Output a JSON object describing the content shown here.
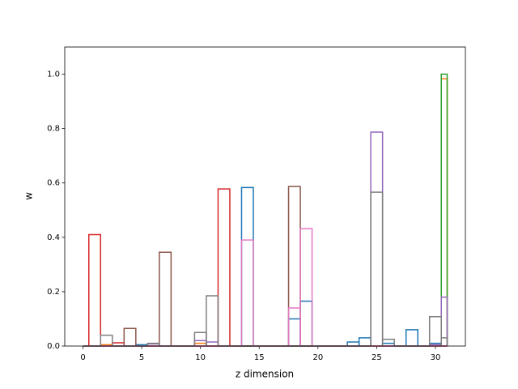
{
  "chart_data": {
    "type": "histogram",
    "x_label": "z dimension",
    "y_label": "w",
    "xlim": [
      -1.55,
      32.55
    ],
    "ylim": [
      0,
      1.1
    ],
    "xticks": [
      0,
      5,
      10,
      15,
      20,
      25,
      30
    ],
    "yticks": [
      {
        "value": 0,
        "label": "0.0"
      },
      {
        "value": 0.2,
        "label": "0.2"
      },
      {
        "value": 0.4,
        "label": "0.4"
      },
      {
        "value": 0.6,
        "label": "0.6"
      },
      {
        "value": 0.8,
        "label": "0.8"
      },
      {
        "value": 1.0,
        "label": "1.0"
      }
    ],
    "bins": [
      0,
      0.5,
      1.5,
      2.5,
      3.5,
      4.5,
      5.5,
      6.5,
      7.5,
      8.5,
      9.5,
      10.5,
      11.5,
      12.5,
      13.5,
      14.5,
      15.5,
      16.5,
      17.5,
      18.5,
      19.5,
      20.5,
      21.5,
      22.5,
      23.5,
      24.5,
      25.5,
      26.5,
      27.5,
      28.5,
      29.5,
      30.5,
      31
    ],
    "series": [
      {
        "color": "#1f77b4",
        "values": [
          0,
          0,
          0,
          0,
          0,
          0.005,
          0,
          0,
          0,
          0,
          0,
          0,
          0,
          0,
          0.583,
          0,
          0,
          0,
          0.1,
          0.165,
          0,
          0,
          0,
          0.015,
          0.03,
          0,
          0.01,
          0,
          0.06,
          0,
          0.01,
          0
        ]
      },
      {
        "color": "#ff7f0e",
        "values": [
          0,
          0,
          0.005,
          0,
          0,
          0,
          0,
          0,
          0,
          0,
          0.01,
          0,
          0,
          0,
          0,
          0,
          0,
          0,
          0,
          0,
          0,
          0,
          0,
          0,
          0,
          0,
          0,
          0,
          0,
          0,
          0,
          0.983
        ]
      },
      {
        "color": "#2ca02c",
        "values": [
          0,
          0,
          0,
          0,
          0,
          0,
          0,
          0,
          0,
          0,
          0,
          0,
          0,
          0,
          0,
          0,
          0,
          0,
          0,
          0,
          0,
          0,
          0,
          0,
          0,
          0,
          0,
          0,
          0,
          0,
          0,
          1.0
        ]
      },
      {
        "color": "#d62728",
        "values": [
          0,
          0.41,
          0,
          0.012,
          0,
          0,
          0,
          0,
          0,
          0,
          0,
          0,
          0.578,
          0,
          0,
          0,
          0,
          0,
          0,
          0,
          0,
          0,
          0,
          0,
          0,
          0,
          0,
          0,
          0,
          0,
          0,
          0
        ]
      },
      {
        "color": "#9467bd",
        "values": [
          0,
          0,
          0,
          0,
          0,
          0,
          0.008,
          0,
          0,
          0,
          0.02,
          0.015,
          0,
          0,
          0,
          0,
          0,
          0,
          0,
          0,
          0,
          0,
          0,
          0,
          0,
          0.787,
          0,
          0,
          0,
          0,
          0.005,
          0.18
        ]
      },
      {
        "color": "#8c564b",
        "values": [
          0,
          0,
          0,
          0,
          0.065,
          0,
          0,
          0.345,
          0,
          0,
          0,
          0,
          0,
          0,
          0,
          0,
          0,
          0,
          0.587,
          0,
          0,
          0,
          0,
          0,
          0,
          0,
          0,
          0,
          0,
          0,
          0,
          0
        ]
      },
      {
        "color": "#e377c2",
        "values": [
          0,
          0,
          0,
          0,
          0,
          0,
          0,
          0,
          0,
          0,
          0,
          0,
          0,
          0,
          0.39,
          0,
          0,
          0,
          0.14,
          0.432,
          0,
          0,
          0,
          0,
          0,
          0,
          0,
          0,
          0,
          0,
          0,
          0
        ]
      },
      {
        "color": "#7f7f7f",
        "values": [
          0,
          0,
          0.04,
          0,
          0,
          0,
          0.01,
          0,
          0,
          0,
          0.05,
          0.185,
          0,
          0,
          0,
          0,
          0,
          0,
          0,
          0,
          0,
          0,
          0,
          0,
          0,
          0.566,
          0.025,
          0,
          0,
          0,
          0.108,
          0.03
        ]
      }
    ]
  }
}
